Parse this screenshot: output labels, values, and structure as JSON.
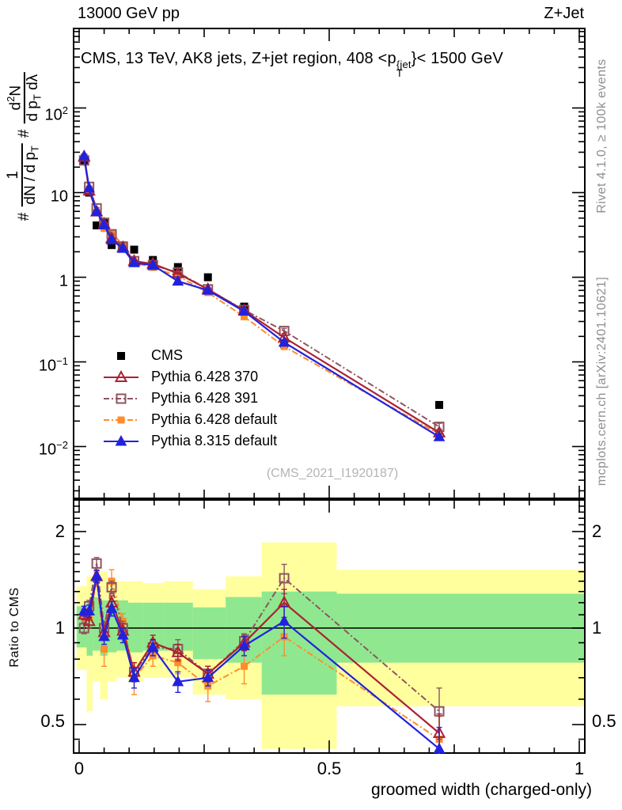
{
  "header": {
    "left": "13000 GeV pp",
    "right": "Z+Jet"
  },
  "title": {
    "part1": "CMS, 13 TeV, AK8 jets, Z+jet region, 408 <p",
    "sup": "{jet",
    "sub": "T",
    "part2": "}< 1500 GeV"
  },
  "ylabel": {
    "hash1": "#",
    "f1num": "1",
    "f1den_pre": "dN / d p",
    "f1den_sub": "T",
    "hash2": "#",
    "f2num_pre": "d",
    "f2num_sup": "2",
    "f2num_post": "N",
    "f2den_pre": "d p",
    "f2den_sub": "T",
    "f2den_post": " dλ"
  },
  "watermark": "(CMS_2021_I1920187)",
  "side_notes": {
    "top": "Rivet 4.1.0, ≥ 100k events",
    "bottom": "mcplots.cern.ch [arXiv:2401.10621]"
  },
  "xaxis": {
    "ticks": [
      "0",
      "0.5",
      "1"
    ],
    "label": "groomed width (charged-only)"
  },
  "main_axis": {
    "tick_labels": [
      {
        "base": "10",
        "exp": "2"
      },
      {
        "base": "10",
        "exp": ""
      },
      {
        "base": "1",
        "exp": ""
      },
      {
        "base": "10",
        "exp": "−1"
      },
      {
        "base": "10",
        "exp": "−2"
      }
    ]
  },
  "ratio_axis": {
    "label": "Ratio to CMS",
    "tick_labels": [
      "2",
      "1",
      "0.5"
    ]
  },
  "colors": {
    "frame": "#000000",
    "cms": "#000000",
    "pythia6_370": "#aa2233",
    "pythia6_391": "#8e5560",
    "pythia6_default": "#ff8c2e",
    "pythia8_default": "#2222dd",
    "band_yellow": "#ffff9e",
    "band_green": "#8fe88f",
    "note_gray": "#8f8f8f",
    "watermark_gray": "#b4b4b4"
  },
  "chart_data": {
    "type": "line",
    "x_label": "groomed width (charged-only)",
    "x_ticks": [
      0,
      0.5,
      1
    ],
    "x_minor_step": 0.05,
    "main_ylog_ticks": [
      100,
      10,
      1,
      0.1,
      0.01
    ],
    "main_ylim": [
      0.0024,
      900
    ],
    "ratio_ticks": [
      0.5,
      1,
      2
    ],
    "ratio_minor_ticks": [
      0.45,
      0.6,
      0.7,
      0.8,
      0.9,
      1.1,
      1.2,
      1.3,
      1.4,
      1.5,
      1.6,
      1.7,
      1.8,
      1.9,
      2.1,
      2.2,
      2.3,
      2.4
    ],
    "ratio_ylim": [
      0.404,
      2.49
    ],
    "x": [
      0.01,
      0.02,
      0.035,
      0.05,
      0.065,
      0.0875,
      0.11,
      0.1475,
      0.1975,
      0.2575,
      0.33,
      0.41,
      0.72
    ],
    "series": [
      {
        "name": "CMS",
        "marker": "square-filled",
        "color": "#000000",
        "line": "none",
        "z": 0,
        "values": [
          24,
          10,
          4.1,
          4.4,
          2.4,
          2.3,
          2.12,
          1.6,
          1.32,
          1.0,
          0.45,
          0.162,
          0.031
        ],
        "err_frac": [
          0.04,
          0.04,
          0.04,
          0.04,
          0.04,
          0.04,
          0.04,
          0.04,
          0.04,
          0.04,
          0.05,
          0.06,
          0.08
        ]
      },
      {
        "name": "Pythia 6.428 370",
        "marker": "triangle-open",
        "color": "#aa2233",
        "line": "solid",
        "z": 3,
        "values": [
          26.4,
          10.5,
          5.95,
          4.27,
          2.88,
          2.25,
          1.55,
          1.44,
          1.11,
          0.72,
          0.405,
          0.194,
          0.0146
        ],
        "err_frac": [
          0.02,
          0.02,
          0.02,
          0.02,
          0.02,
          0.02,
          0.02,
          0.02,
          0.02,
          0.02,
          0.03,
          0.06,
          0.09
        ],
        "ratio": [
          1.1,
          1.05,
          1.45,
          0.97,
          1.2,
          0.98,
          0.73,
          0.9,
          0.84,
          0.72,
          0.9,
          1.2,
          0.47
        ],
        "ratio_err": [
          0.04,
          0.05,
          0.06,
          0.05,
          0.06,
          0.05,
          0.05,
          0.05,
          0.05,
          0.04,
          0.05,
          0.12,
          0.07
        ]
      },
      {
        "name": "Pythia 6.428 391",
        "marker": "square-open",
        "color": "#8e5560",
        "line": "dashdot",
        "z": 2,
        "values": [
          24.0,
          11.7,
          6.52,
          4.4,
          3.22,
          2.3,
          1.55,
          1.39,
          1.14,
          0.72,
          0.41,
          0.232,
          0.0171
        ],
        "err_frac": [
          0.02,
          0.02,
          0.02,
          0.02,
          0.02,
          0.02,
          0.02,
          0.02,
          0.02,
          0.02,
          0.03,
          0.07,
          0.1
        ],
        "ratio": [
          1.0,
          1.17,
          1.59,
          1.0,
          1.34,
          1.0,
          0.73,
          0.87,
          0.86,
          0.72,
          0.91,
          1.43,
          0.55
        ],
        "ratio_err": [
          0.04,
          0.05,
          0.07,
          0.05,
          0.06,
          0.05,
          0.05,
          0.05,
          0.06,
          0.04,
          0.05,
          0.15,
          0.1
        ]
      },
      {
        "name": "Pythia 6.428 default",
        "marker": "square-filled",
        "color": "#ff8c2e",
        "line": "dashdot",
        "z": 1,
        "values": [
          26.4,
          10.8,
          5.82,
          3.78,
          3.36,
          2.42,
          1.48,
          1.31,
          1.03,
          0.66,
          0.342,
          0.152,
          0.014
        ],
        "err_frac": [
          0.02,
          0.02,
          0.02,
          0.03,
          0.03,
          0.02,
          0.03,
          0.02,
          0.02,
          0.03,
          0.04,
          0.07,
          0.09
        ],
        "ratio": [
          1.1,
          1.08,
          1.42,
          0.86,
          1.4,
          1.05,
          0.7,
          0.82,
          0.78,
          0.66,
          0.76,
          0.94,
          0.45
        ],
        "ratio_err": [
          0.05,
          0.06,
          0.07,
          0.1,
          0.12,
          0.06,
          0.08,
          0.06,
          0.06,
          0.07,
          0.09,
          0.12,
          0.08
        ]
      },
      {
        "name": "Pythia 8.315 default",
        "marker": "triangle-filled",
        "color": "#2222dd",
        "line": "solid",
        "z": 4,
        "values": [
          27.1,
          11.3,
          5.95,
          4.14,
          2.76,
          2.19,
          1.48,
          1.39,
          0.898,
          0.7,
          0.396,
          0.17,
          0.013
        ],
        "err_frac": [
          0.02,
          0.02,
          0.02,
          0.02,
          0.02,
          0.02,
          0.02,
          0.02,
          0.02,
          0.02,
          0.03,
          0.06,
          0.09
        ],
        "ratio": [
          1.13,
          1.13,
          1.45,
          0.94,
          1.15,
          0.95,
          0.7,
          0.87,
          0.68,
          0.7,
          0.88,
          1.05,
          0.42
        ],
        "ratio_err": [
          0.04,
          0.05,
          0.06,
          0.05,
          0.06,
          0.05,
          0.05,
          0.05,
          0.05,
          0.04,
          0.06,
          0.12,
          0.07
        ]
      }
    ],
    "bands": {
      "yellow": {
        "color": "#ffff9e",
        "segments": [
          [
            -0.005,
            0.015,
            0.74,
            1.35
          ],
          [
            0.015,
            0.027,
            0.55,
            1.45
          ],
          [
            0.027,
            0.042,
            0.68,
            1.45
          ],
          [
            0.042,
            0.057,
            0.6,
            1.5
          ],
          [
            0.057,
            0.075,
            0.68,
            1.42
          ],
          [
            0.075,
            0.098,
            0.7,
            1.4
          ],
          [
            0.098,
            0.128,
            0.68,
            1.4
          ],
          [
            0.128,
            0.17,
            0.7,
            1.38
          ],
          [
            0.17,
            0.2275,
            0.7,
            1.4
          ],
          [
            0.2275,
            0.293,
            0.62,
            1.32
          ],
          [
            0.293,
            0.365,
            0.6,
            1.45
          ],
          [
            0.365,
            0.515,
            0.42,
            1.85
          ],
          [
            0.515,
            1.0127,
            0.57,
            1.52
          ]
        ]
      },
      "green": {
        "color": "#8fe88f",
        "segments": [
          [
            -0.005,
            0.015,
            0.87,
            1.17
          ],
          [
            0.015,
            0.027,
            0.82,
            1.2
          ],
          [
            0.027,
            0.042,
            0.85,
            1.25
          ],
          [
            0.042,
            0.057,
            0.82,
            1.22
          ],
          [
            0.057,
            0.075,
            0.84,
            1.22
          ],
          [
            0.075,
            0.098,
            0.85,
            1.22
          ],
          [
            0.098,
            0.128,
            0.84,
            1.2
          ],
          [
            0.128,
            0.17,
            0.85,
            1.2
          ],
          [
            0.17,
            0.2275,
            0.85,
            1.2
          ],
          [
            0.2275,
            0.293,
            0.8,
            1.16
          ],
          [
            0.293,
            0.365,
            0.78,
            1.25
          ],
          [
            0.365,
            0.515,
            0.62,
            1.3
          ],
          [
            0.515,
            1.0127,
            0.78,
            1.28
          ]
        ]
      }
    }
  }
}
